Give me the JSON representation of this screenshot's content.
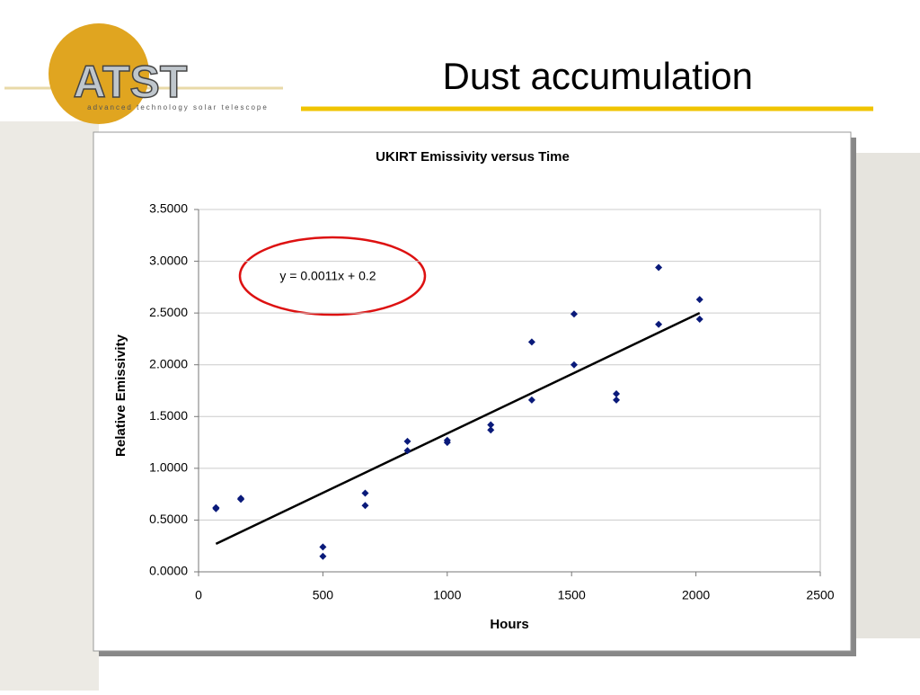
{
  "title": "Dust accumulation",
  "logo": {
    "text": "ATST",
    "subtitle": "advanced technology solar telescope"
  },
  "chart_data": {
    "type": "scatter",
    "title": "UKIRT Emissivity versus Time",
    "xlabel": "Hours",
    "ylabel": "Relative Emissivity",
    "x": [
      70,
      70,
      170,
      170,
      500,
      500,
      670,
      670,
      840,
      840,
      1000,
      1000,
      1175,
      1175,
      1340,
      1340,
      1510,
      1510,
      1680,
      1680,
      1850,
      1850,
      2015,
      2015
    ],
    "values": [
      0.62,
      0.61,
      0.71,
      0.7,
      0.24,
      0.15,
      0.76,
      0.64,
      1.26,
      1.17,
      1.27,
      1.25,
      1.42,
      1.37,
      2.22,
      1.66,
      2.49,
      2.0,
      1.72,
      1.66,
      2.94,
      2.39,
      2.63,
      2.44
    ],
    "color": "#0a1a7a",
    "trendline": {
      "x": [
        70,
        2015
      ],
      "values": [
        0.27,
        2.5
      ],
      "color": "#000000"
    },
    "annotation": {
      "text": "y = 0.0011x + 0.2"
    },
    "xlim": [
      0,
      2500
    ],
    "ylim": [
      0,
      3.5
    ],
    "xticks": [
      0,
      500,
      1000,
      1500,
      2000,
      2500
    ],
    "yticks": [
      {
        "value": 0,
        "label": "0.0000"
      },
      {
        "value": 0.5,
        "label": "0.5000"
      },
      {
        "value": 1,
        "label": "1.0000"
      },
      {
        "value": 1.5,
        "label": "1.5000"
      },
      {
        "value": 2,
        "label": "2.0000"
      },
      {
        "value": 2.5,
        "label": "2.5000"
      },
      {
        "value": 3,
        "label": "3.0000"
      },
      {
        "value": 3.5,
        "label": "3.5000"
      }
    ],
    "grid": true
  }
}
